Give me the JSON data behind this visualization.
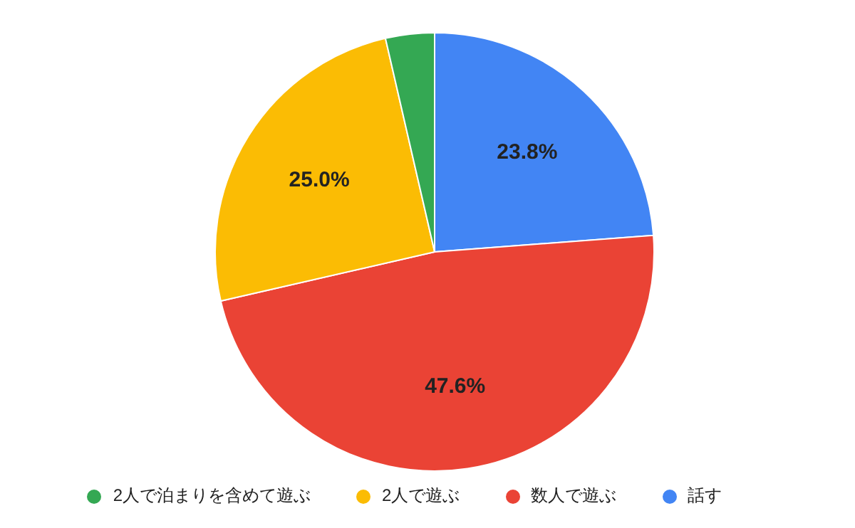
{
  "chart_data": {
    "type": "pie",
    "categories": [
      "話す",
      "数人で遊ぶ",
      "2人で遊ぶ",
      "2人で泊まりを含めて遊ぶ"
    ],
    "values": [
      23.8,
      47.6,
      25.0,
      3.6
    ],
    "colors": [
      "#4285f4",
      "#ea4335",
      "#fbbc04",
      "#34a853"
    ],
    "value_labels": [
      "23.8%",
      "47.6%",
      "25.0%",
      null
    ],
    "legend": "bottom"
  }
}
